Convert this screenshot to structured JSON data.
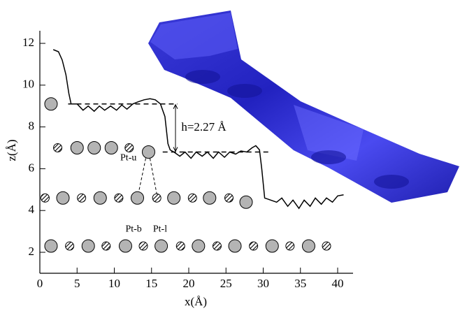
{
  "chart_data": {
    "type": "line",
    "xlabel": "x(Å)",
    "ylabel": "z(Å)",
    "xlim": [
      0,
      42
    ],
    "ylim": [
      1,
      12.6
    ],
    "xticks": [
      0,
      5,
      10,
      15,
      20,
      25,
      30,
      35,
      40
    ],
    "yticks": [
      2,
      4,
      6,
      8,
      10,
      12
    ],
    "series": [
      {
        "type": "line",
        "color": "#000000",
        "x": [
          1.8,
          2.5,
          3,
          3.5,
          3.9,
          4.2,
          5,
          5.8,
          6.5,
          7.3,
          8,
          8.7,
          9.5,
          10.3,
          11,
          11.7,
          12.5,
          13.2,
          14,
          14.8,
          15.5,
          16.2,
          16.8,
          17.2,
          17.5,
          18,
          18.8,
          19.5,
          20.3,
          21,
          21.8,
          22.5,
          23.3,
          24,
          24.8,
          25.5,
          26.3,
          27,
          27.8,
          28.5,
          29,
          29.5,
          29.8,
          30.2,
          31,
          31.8,
          32.5,
          33.3,
          34,
          34.8,
          35.5,
          36.3,
          37,
          37.8,
          38.5,
          39.3,
          40,
          40.8
        ],
        "values": [
          11.7,
          11.6,
          11.2,
          10.5,
          9.6,
          9.1,
          9.1,
          8.8,
          9.0,
          8.75,
          9.0,
          8.8,
          9.0,
          8.8,
          9.05,
          8.85,
          9.1,
          9.2,
          9.3,
          9.35,
          9.3,
          9.1,
          8.5,
          7.2,
          6.9,
          6.8,
          6.6,
          6.8,
          6.5,
          6.8,
          6.6,
          6.8,
          6.5,
          6.8,
          6.55,
          6.8,
          6.7,
          6.85,
          6.8,
          7.0,
          7.1,
          6.9,
          6.0,
          4.6,
          4.5,
          4.4,
          4.6,
          4.2,
          4.5,
          4.1,
          4.5,
          4.2,
          4.6,
          4.3,
          4.6,
          4.4,
          4.7,
          4.75
        ]
      },
      {
        "type": "scatter",
        "color": "#b4b4b4",
        "marker": "large",
        "x": [
          1.5,
          5,
          7.3,
          9.6,
          14.6,
          3.1,
          8.1,
          13.1,
          18,
          22.8,
          27.7,
          1.5,
          6.5,
          11.5,
          16.3,
          21.3,
          26.2,
          31.2,
          36.1
        ],
        "values": [
          9.1,
          7.0,
          7.0,
          7.0,
          6.8,
          4.6,
          4.6,
          4.6,
          4.6,
          4.6,
          4.4,
          2.3,
          2.3,
          2.3,
          2.3,
          2.3,
          2.3,
          2.3,
          2.3
        ]
      },
      {
        "type": "scatter",
        "color": "#ffffff",
        "marker": "hatched",
        "x": [
          2.4,
          12,
          0.7,
          5.6,
          10.6,
          15.7,
          20.5,
          25.4,
          4,
          8.9,
          13.9,
          18.9,
          23.8,
          28.7,
          33.6,
          38.5
        ],
        "values": [
          7.0,
          7.0,
          4.6,
          4.6,
          4.6,
          4.6,
          4.6,
          4.6,
          2.3,
          2.3,
          2.3,
          2.3,
          2.3,
          2.3,
          2.3,
          2.3
        ]
      }
    ],
    "hlines": [
      {
        "y": 9.1,
        "x": [
          3.8,
          18.5
        ]
      },
      {
        "y": 6.8,
        "x": [
          16.5,
          31
        ]
      }
    ],
    "annotations": [
      {
        "text": "h=2.27 Å",
        "x": 19,
        "y": 7.95
      },
      {
        "text": "Pt-u",
        "x": 10.8,
        "y": 6.5
      },
      {
        "text": "Pt-b",
        "x": 11.5,
        "y": 3.1
      },
      {
        "text": "Pt-l",
        "x": 15.2,
        "y": 3.1
      }
    ]
  }
}
